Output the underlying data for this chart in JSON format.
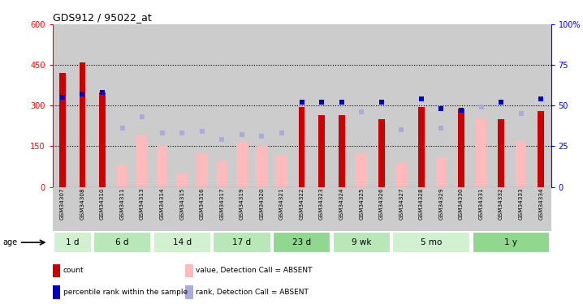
{
  "title": "GDS912 / 95022_at",
  "samples": [
    "GSM34307",
    "GSM34308",
    "GSM34310",
    "GSM34311",
    "GSM34313",
    "GSM34314",
    "GSM34315",
    "GSM34316",
    "GSM34317",
    "GSM34319",
    "GSM34320",
    "GSM34321",
    "GSM34322",
    "GSM34323",
    "GSM34324",
    "GSM34325",
    "GSM34326",
    "GSM34327",
    "GSM34328",
    "GSM34329",
    "GSM34330",
    "GSM34331",
    "GSM34332",
    "GSM34333",
    "GSM34334"
  ],
  "count_values": [
    420,
    460,
    350,
    null,
    null,
    null,
    null,
    null,
    null,
    null,
    null,
    null,
    295,
    265,
    265,
    null,
    250,
    null,
    295,
    null,
    290,
    null,
    250,
    null,
    280
  ],
  "percentile_values": [
    55,
    57,
    58,
    null,
    null,
    null,
    null,
    null,
    null,
    null,
    null,
    null,
    52,
    52,
    52,
    null,
    52,
    null,
    54,
    48,
    47,
    null,
    52,
    null,
    54
  ],
  "absent_value_values": [
    null,
    null,
    null,
    80,
    190,
    150,
    50,
    125,
    95,
    165,
    150,
    115,
    null,
    null,
    null,
    125,
    null,
    90,
    null,
    110,
    null,
    255,
    null,
    170,
    null
  ],
  "absent_rank_values": [
    null,
    null,
    null,
    36,
    43,
    33,
    33,
    34,
    29,
    32,
    31,
    33,
    null,
    null,
    null,
    46,
    null,
    35,
    null,
    36,
    null,
    49,
    null,
    45,
    null
  ],
  "age_groups": [
    {
      "label": "1 d",
      "start": 0,
      "end": 2,
      "color": "#d0f0d0"
    },
    {
      "label": "6 d",
      "start": 2,
      "end": 5,
      "color": "#b8e8b8"
    },
    {
      "label": "14 d",
      "start": 5,
      "end": 8,
      "color": "#d0f0d0"
    },
    {
      "label": "17 d",
      "start": 8,
      "end": 11,
      "color": "#b8e8b8"
    },
    {
      "label": "23 d",
      "start": 11,
      "end": 14,
      "color": "#90d890"
    },
    {
      "label": "9 wk",
      "start": 14,
      "end": 17,
      "color": "#b8e8b8"
    },
    {
      "label": "5 mo",
      "start": 17,
      "end": 21,
      "color": "#d0f0d0"
    },
    {
      "label": "1 y",
      "start": 21,
      "end": 25,
      "color": "#90d890"
    }
  ],
  "ylim_left": [
    0,
    600
  ],
  "ylim_right": [
    0,
    100
  ],
  "yticks_left": [
    0,
    150,
    300,
    450,
    600
  ],
  "yticks_right": [
    0,
    25,
    50,
    75,
    100
  ],
  "bar_color_count": "#cc0000",
  "bar_color_absent_value": "#ffbbbb",
  "dot_color_percentile": "#0000cc",
  "dot_color_absent_rank": "#aaaadd",
  "sample_bg_color": "#cccccc",
  "legend_items": [
    {
      "label": "count",
      "color": "#cc0000"
    },
    {
      "label": "percentile rank within the sample",
      "color": "#0000cc"
    },
    {
      "label": "value, Detection Call = ABSENT",
      "color": "#ffbbbb"
    },
    {
      "label": "rank, Detection Call = ABSENT",
      "color": "#aaaadd"
    }
  ]
}
